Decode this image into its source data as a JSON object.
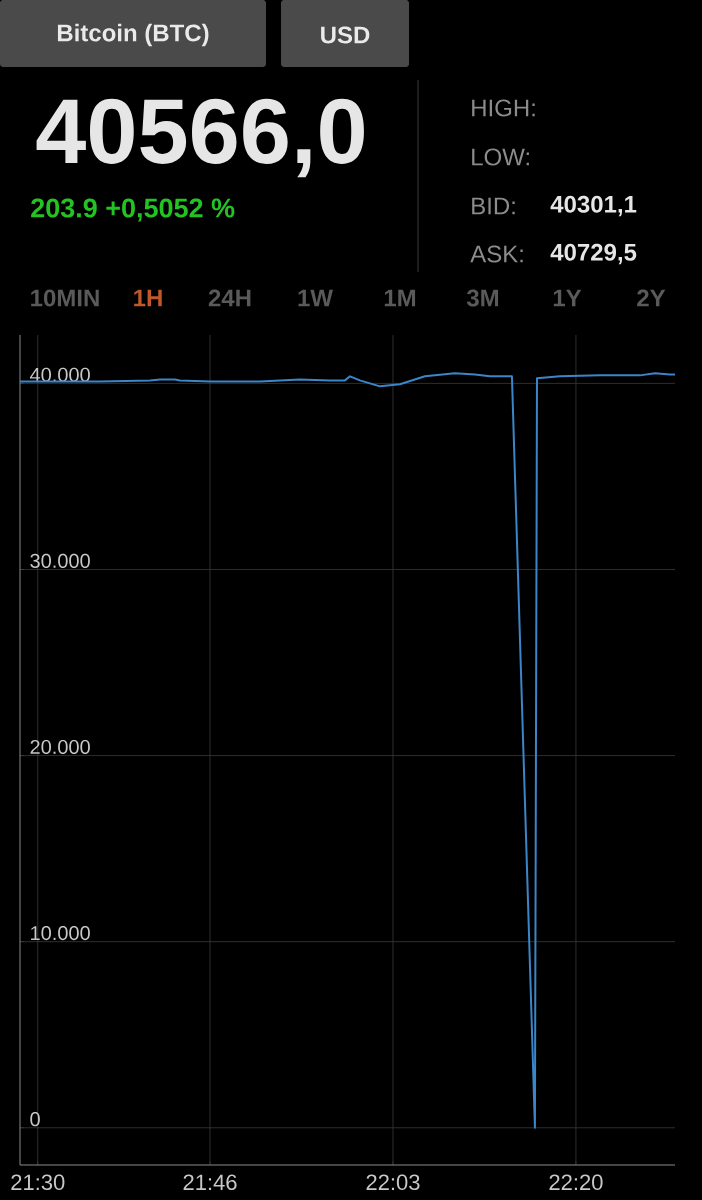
{
  "chart_data": {
    "type": "line",
    "annotations": [
      "Bitcoin (BTC)",
      "USD",
      "40566,0",
      "203.9 +0,5052 %",
      "HIGH:",
      "LOW:",
      "BID:",
      "40301,1",
      "ASK:",
      "40729,5",
      "10MIN",
      "1H",
      "24H",
      "1W",
      "1M",
      "3M",
      "1Y",
      "2Y"
    ],
    "x": [
      21.4725,
      21.5963,
      21.6738,
      21.6893,
      21.7125,
      21.7202,
      21.7667,
      21.8442,
      21.906,
      21.9525,
      21.9757,
      21.9835,
      21.9988,
      22.0298,
      22.0608,
      22.0995,
      22.146,
      22.177,
      22.2002,
      22.2312,
      22.2342,
      22.2698,
      22.273,
      22.3085,
      22.3705,
      22.4323,
      22.4557,
      22.4788,
      22.4867
    ],
    "series": [
      {
        "color": "#3a86c8",
        "values": [
          40100,
          40100,
          40160,
          40210,
          40210,
          40160,
          40100,
          40100,
          40210,
          40160,
          40160,
          40380,
          40160,
          39840,
          39950,
          40380,
          40540,
          40480,
          40380,
          40380,
          40380,
          0,
          40270,
          40380,
          40430,
          40430,
          40540,
          40480,
          40480
        ]
      }
    ],
    "xlim": [
      21.4725,
      22.4867
    ],
    "ylim": [
      -2000,
      42600
    ],
    "xticks": [
      {
        "value": 21.5,
        "label": "21:30"
      },
      {
        "value": 21.7667,
        "label": "21:46"
      },
      {
        "value": 22.05,
        "label": "22:03"
      },
      {
        "value": 22.3333,
        "label": "22:20"
      }
    ],
    "yticks": [
      0,
      {
        "value": 10000,
        "label": "10.000"
      },
      {
        "value": 20000,
        "label": "20.000"
      },
      {
        "value": 30000,
        "label": "30.000"
      },
      {
        "value": 40000,
        "label": "40.000"
      }
    ],
    "grid": true,
    "marker": "none",
    "line_style": "solid"
  }
}
